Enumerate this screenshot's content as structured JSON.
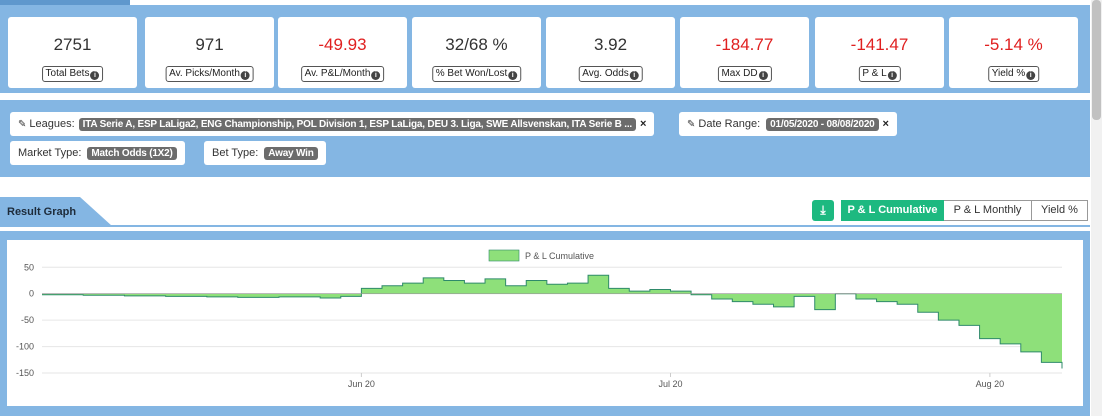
{
  "stats": [
    {
      "value": "2751",
      "label": "Total Bets",
      "negative": false
    },
    {
      "value": "971",
      "label": "Av. Picks/Month",
      "negative": false
    },
    {
      "value": "-49.93",
      "label": "Av. P&L/Month",
      "negative": true
    },
    {
      "value": "32/68 %",
      "label": "% Bet Won/Lost",
      "negative": false
    },
    {
      "value": "3.92",
      "label": "Avg. Odds",
      "negative": false
    },
    {
      "value": "-184.77",
      "label": "Max DD",
      "negative": true
    },
    {
      "value": "-141.47",
      "label": "P & L",
      "negative": true
    },
    {
      "value": "-5.14 %",
      "label": "Yield %",
      "negative": true
    }
  ],
  "filters": {
    "leagues_label": "Leagues:",
    "leagues_value": "ITA Serie A, ESP LaLiga2, ENG Championship, POL Division 1, ESP LaLiga, DEU 3. Liga, SWE Allsvenskan, ITA Serie B ...",
    "date_label": "Date Range:",
    "date_value": "01/05/2020 - 08/08/2020",
    "market_label": "Market Type:",
    "market_value": "Match Odds (1X2)",
    "bet_label": "Bet Type:",
    "bet_value": "Away Win",
    "remove_glyph": "×",
    "pencil_glyph": "✎"
  },
  "result": {
    "title": "Result Graph",
    "download_glyph": "⤓",
    "tabs": [
      "P & L Cumulative",
      "P & L Monthly",
      "Yield %"
    ],
    "active_tab": 0
  },
  "colors": {
    "accent": "#1db980",
    "band": "#84b6e3",
    "negative": "#e02020",
    "area_fill": "#8ee07a",
    "area_line": "#2f8a6a"
  },
  "chart_data": {
    "type": "area",
    "legend": [
      "P & L Cumulative"
    ],
    "legend_position": "top-center",
    "ylim": [
      -150,
      60
    ],
    "yticks": [
      50,
      0,
      -50,
      -100,
      -150
    ],
    "xticks": [
      {
        "label": "Jun 20",
        "date": "2020-06-01"
      },
      {
        "label": "Jul 20",
        "date": "2020-07-01"
      },
      {
        "label": "Aug 20",
        "date": "2020-08-01"
      }
    ],
    "grid": true,
    "series": [
      {
        "name": "P & L Cumulative",
        "points": [
          [
            "2020-05-01",
            -2
          ],
          [
            "2020-05-05",
            -3
          ],
          [
            "2020-05-09",
            -4
          ],
          [
            "2020-05-13",
            -5
          ],
          [
            "2020-05-17",
            -6
          ],
          [
            "2020-05-20",
            -7
          ],
          [
            "2020-05-24",
            -6
          ],
          [
            "2020-05-28",
            -8
          ],
          [
            "2020-05-30",
            -5
          ],
          [
            "2020-06-01",
            10
          ],
          [
            "2020-06-03",
            15
          ],
          [
            "2020-06-05",
            20
          ],
          [
            "2020-06-07",
            30
          ],
          [
            "2020-06-09",
            25
          ],
          [
            "2020-06-11",
            20
          ],
          [
            "2020-06-13",
            28
          ],
          [
            "2020-06-15",
            15
          ],
          [
            "2020-06-17",
            25
          ],
          [
            "2020-06-19",
            18
          ],
          [
            "2020-06-21",
            20
          ],
          [
            "2020-06-23",
            35
          ],
          [
            "2020-06-25",
            10
          ],
          [
            "2020-06-27",
            5
          ],
          [
            "2020-06-29",
            8
          ],
          [
            "2020-07-01",
            5
          ],
          [
            "2020-07-03",
            -2
          ],
          [
            "2020-07-05",
            -10
          ],
          [
            "2020-07-07",
            -15
          ],
          [
            "2020-07-09",
            -20
          ],
          [
            "2020-07-11",
            -25
          ],
          [
            "2020-07-13",
            -5
          ],
          [
            "2020-07-15",
            -30
          ],
          [
            "2020-07-17",
            0
          ],
          [
            "2020-07-19",
            -10
          ],
          [
            "2020-07-21",
            -15
          ],
          [
            "2020-07-23",
            -20
          ],
          [
            "2020-07-25",
            -35
          ],
          [
            "2020-07-27",
            -50
          ],
          [
            "2020-07-29",
            -60
          ],
          [
            "2020-07-31",
            -85
          ],
          [
            "2020-08-02",
            -95
          ],
          [
            "2020-08-04",
            -110
          ],
          [
            "2020-08-06",
            -130
          ],
          [
            "2020-08-08",
            -141.47
          ]
        ]
      }
    ]
  }
}
